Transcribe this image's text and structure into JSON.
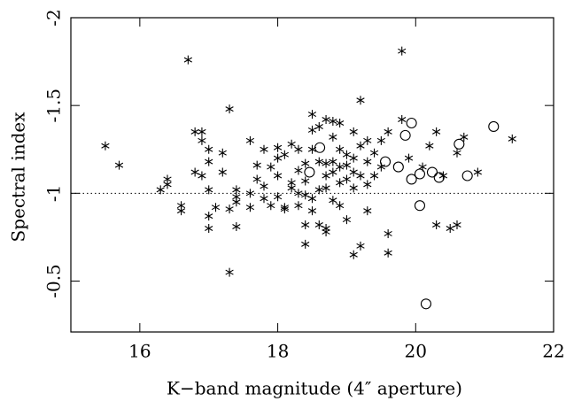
{
  "chart_data": {
    "type": "scatter",
    "xlabel": "K−band magnitude (4″ aperture)",
    "ylabel": "Spectral index",
    "xlim": [
      15,
      22
    ],
    "xticks": [
      16,
      18,
      20,
      22
    ],
    "ylim": [
      -0.21,
      -2
    ],
    "yticks": [
      -2,
      -1.5,
      -1,
      -0.5
    ],
    "hline": -1,
    "series": [
      {
        "marker": "asterisk",
        "color": "#000000",
        "x": [
          15.5,
          15.7,
          16.3,
          16.4,
          16.4,
          16.6,
          16.6,
          16.7,
          16.8,
          16.8,
          16.9,
          16.9,
          16.9,
          17.0,
          17.0,
          17.0,
          17.0,
          17.0,
          17.1,
          17.2,
          17.2,
          17.3,
          17.3,
          17.3,
          17.4,
          17.4,
          17.4,
          17.4,
          17.6,
          17.6,
          17.6,
          17.7,
          17.7,
          17.8,
          17.8,
          17.8,
          17.9,
          17.9,
          18.0,
          18.0,
          18.0,
          18.0,
          18.1,
          18.1,
          18.1,
          18.2,
          18.2,
          18.2,
          18.3,
          18.3,
          18.3,
          18.3,
          18.4,
          18.4,
          18.4,
          18.4,
          18.5,
          18.5,
          18.5,
          18.5,
          18.5,
          18.6,
          18.6,
          18.6,
          18.6,
          18.7,
          18.7,
          18.7,
          18.7,
          18.7,
          18.8,
          18.8,
          18.8,
          18.8,
          18.8,
          18.9,
          18.9,
          18.9,
          18.9,
          18.9,
          19.0,
          19.0,
          19.0,
          19.0,
          19.1,
          19.1,
          19.1,
          19.1,
          19.1,
          19.2,
          19.2,
          19.2,
          19.2,
          19.3,
          19.3,
          19.3,
          19.3,
          19.4,
          19.4,
          19.8,
          19.5,
          19.5,
          19.6,
          19.6,
          19.6,
          19.8,
          19.9,
          20.1,
          20.2,
          20.3,
          20.3,
          20.4,
          20.5,
          20.6,
          20.6,
          20.7,
          20.9,
          21.4,
          18.4,
          18.7
        ],
        "values": [
          -1.27,
          -1.16,
          -1.02,
          -1.05,
          -1.08,
          -0.93,
          -0.9,
          -1.76,
          -1.35,
          -1.12,
          -1.35,
          -1.3,
          -1.1,
          -1.25,
          -1.18,
          -1.02,
          -0.87,
          -0.8,
          -0.92,
          -1.23,
          -1.12,
          -1.48,
          -0.91,
          -0.55,
          -1.02,
          -0.98,
          -0.95,
          -0.81,
          -1.3,
          -1.0,
          -0.92,
          -1.16,
          -1.08,
          -1.25,
          -1.04,
          -0.97,
          -1.15,
          -0.93,
          -1.26,
          -1.2,
          -1.1,
          -0.98,
          -1.22,
          -0.92,
          -0.91,
          -1.28,
          -1.06,
          -1.03,
          -1.25,
          -1.13,
          -1.0,
          -0.93,
          -1.17,
          -1.07,
          -0.99,
          -0.82,
          -1.45,
          -1.36,
          -1.25,
          -0.97,
          -0.9,
          -1.38,
          -1.18,
          -1.02,
          -0.82,
          -1.42,
          -1.17,
          -1.1,
          -1.03,
          -0.8,
          -1.41,
          -1.32,
          -1.18,
          -1.12,
          -0.96,
          -1.4,
          -1.25,
          -1.15,
          -1.06,
          -0.93,
          -1.22,
          -1.16,
          -1.08,
          -0.85,
          -1.35,
          -1.2,
          -1.12,
          -1.03,
          -0.65,
          -1.53,
          -1.27,
          -1.1,
          -0.7,
          -1.3,
          -1.18,
          -1.05,
          -0.9,
          -1.23,
          -1.1,
          -1.81,
          -1.3,
          -1.15,
          -1.35,
          -0.77,
          -0.66,
          -1.42,
          -1.2,
          -1.15,
          -1.27,
          -1.35,
          -0.82,
          -1.1,
          -0.8,
          -0.82,
          -1.23,
          -1.32,
          -1.12,
          -1.31,
          -0.71,
          -0.78
        ]
      },
      {
        "marker": "circle",
        "color": "#000000",
        "x": [
          18.61,
          18.46,
          19.94,
          19.85,
          19.56,
          19.75,
          19.94,
          20.06,
          20.24,
          20.34,
          20.06,
          20.63,
          20.75,
          21.13,
          20.15
        ],
        "values": [
          -1.26,
          -1.12,
          -1.4,
          -1.33,
          -1.18,
          -1.15,
          -1.08,
          -1.11,
          -1.12,
          -1.09,
          -0.93,
          -1.28,
          -1.1,
          -1.38,
          -0.37
        ]
      }
    ]
  }
}
